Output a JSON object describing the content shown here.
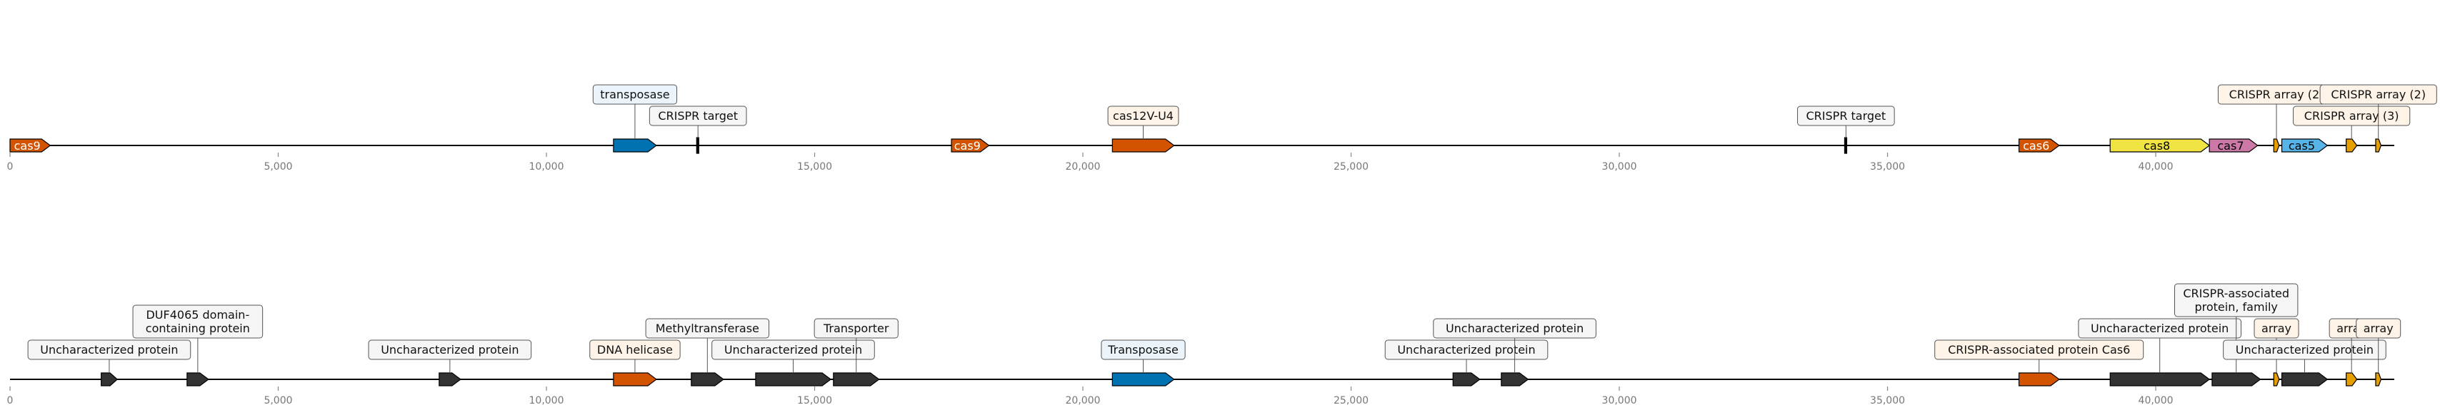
{
  "axis": {
    "min": 0,
    "max": 44500,
    "ticks": [
      0,
      5000,
      10000,
      15000,
      20000,
      25000,
      30000,
      35000,
      40000
    ],
    "tick_labels": [
      "0",
      "5,000",
      "10,000",
      "15,000",
      "20,000",
      "25,000",
      "30,000",
      "35,000",
      "40,000"
    ]
  },
  "colors": {
    "cas9": "#d35400",
    "transposase": "#0072b2",
    "cas8": "#f0e442",
    "cas7": "#cc79a7",
    "cas5": "#56b4e9",
    "array": "#e69f00",
    "uncharacterized": "#333333",
    "line": "#000000",
    "callout_fill_blue": "#eaf4fa",
    "callout_fill_orange": "#fdf3e6",
    "callout_fill_grey": "#f5f5f5"
  },
  "tracks": [
    {
      "genes": [
        {
          "start": 0,
          "end": 750,
          "strand": 1,
          "color": "cas9",
          "inner_label": "cas9",
          "label_color": "#ffffff"
        },
        {
          "start": 11250,
          "end": 12050,
          "strand": 1,
          "color": "transposase",
          "callout": "transposase",
          "callout_fill": "callout_fill_blue",
          "level": 2
        },
        {
          "start": 12800,
          "end": 12850,
          "strand": 1,
          "color": "uncharacterized",
          "callout": "CRISPR target",
          "callout_fill": "callout_fill_grey",
          "level": 1,
          "marker": true
        },
        {
          "start": 17550,
          "end": 18250,
          "strand": 1,
          "color": "cas9",
          "inner_label": "cas9",
          "label_color": "#ffffff"
        },
        {
          "start": 20550,
          "end": 21700,
          "strand": 1,
          "color": "cas9",
          "callout": "cas12V-U4",
          "callout_fill": "callout_fill_orange",
          "level": 1
        },
        {
          "start": 34200,
          "end": 34250,
          "strand": 1,
          "color": "uncharacterized",
          "callout": "CRISPR target",
          "callout_fill": "callout_fill_grey",
          "level": 1,
          "marker": true
        },
        {
          "start": 37450,
          "end": 38200,
          "strand": 1,
          "color": "cas9",
          "inner_label": "cas6",
          "label_color": "#ffffff"
        },
        {
          "start": 39150,
          "end": 41000,
          "strand": 1,
          "color": "cas8",
          "inner_label": "cas8",
          "label_color": "#000000"
        },
        {
          "start": 41000,
          "end": 41900,
          "strand": 1,
          "color": "cas7",
          "inner_label": "cas7",
          "label_color": "#000000"
        },
        {
          "start": 42200,
          "end": 42300,
          "strand": 1,
          "color": "array",
          "callout": "CRISPR array (2)",
          "callout_fill": "callout_fill_orange",
          "level": 2
        },
        {
          "start": 42350,
          "end": 43200,
          "strand": 1,
          "color": "cas5",
          "inner_label": "cas5",
          "label_color": "#000000"
        },
        {
          "start": 43550,
          "end": 43750,
          "strand": 1,
          "color": "array",
          "callout": "CRISPR array (3)",
          "callout_fill": "callout_fill_orange",
          "level": 1
        },
        {
          "start": 44100,
          "end": 44200,
          "strand": 1,
          "color": "array",
          "callout": "CRISPR array (2)",
          "callout_fill": "callout_fill_orange",
          "level": 2
        }
      ]
    },
    {
      "genes": [
        {
          "start": 1700,
          "end": 2000,
          "strand": 1,
          "color": "uncharacterized",
          "callout": "Uncharacterized protein",
          "callout_fill": "callout_fill_grey",
          "level": 1
        },
        {
          "start": 3300,
          "end": 3700,
          "strand": 1,
          "color": "uncharacterized",
          "callout": "DUF4065 domain-\ncontaining protein",
          "callout_fill": "callout_fill_grey",
          "level": 2
        },
        {
          "start": 8000,
          "end": 8400,
          "strand": 1,
          "color": "uncharacterized",
          "callout": "Uncharacterized protein",
          "callout_fill": "callout_fill_grey",
          "level": 1
        },
        {
          "start": 11250,
          "end": 12050,
          "strand": 1,
          "color": "cas9",
          "callout": "DNA helicase",
          "callout_fill": "callout_fill_orange",
          "level": 1
        },
        {
          "start": 12700,
          "end": 13300,
          "strand": 1,
          "color": "uncharacterized",
          "callout": "Methyltransferase",
          "callout_fill": "callout_fill_grey",
          "level": 2
        },
        {
          "start": 13900,
          "end": 15300,
          "strand": 1,
          "color": "uncharacterized",
          "callout": "Uncharacterized protein",
          "callout_fill": "callout_fill_grey",
          "level": 1
        },
        {
          "start": 15350,
          "end": 16200,
          "strand": 1,
          "color": "uncharacterized",
          "callout": "Transporter",
          "callout_fill": "callout_fill_grey",
          "level": 2
        },
        {
          "start": 20550,
          "end": 21700,
          "strand": 1,
          "color": "transposase",
          "callout": "Transposase",
          "callout_fill": "callout_fill_blue",
          "level": 1
        },
        {
          "start": 26900,
          "end": 27400,
          "strand": 1,
          "color": "uncharacterized",
          "callout": "Uncharacterized protein",
          "callout_fill": "callout_fill_grey",
          "level": 1
        },
        {
          "start": 27800,
          "end": 28300,
          "strand": 1,
          "color": "uncharacterized",
          "callout": "Uncharacterized protein",
          "callout_fill": "callout_fill_grey",
          "level": 2
        },
        {
          "start": 37450,
          "end": 38200,
          "strand": 1,
          "color": "cas9",
          "callout": "CRISPR-associated protein Cas6",
          "callout_fill": "callout_fill_orange",
          "level": 1
        },
        {
          "start": 39150,
          "end": 41000,
          "strand": 1,
          "color": "uncharacterized",
          "callout": "Uncharacterized protein",
          "callout_fill": "callout_fill_grey",
          "level": 2
        },
        {
          "start": 41050,
          "end": 41950,
          "strand": 1,
          "color": "uncharacterized",
          "callout": "CRISPR-associated\nprotein, family",
          "callout_fill": "callout_fill_grey",
          "level": 3
        },
        {
          "start": 42200,
          "end": 42300,
          "strand": 1,
          "color": "array",
          "callout": "array",
          "callout_fill": "callout_fill_orange",
          "level": 2
        },
        {
          "start": 42350,
          "end": 43200,
          "strand": 1,
          "color": "uncharacterized",
          "callout": "Uncharacterized protein",
          "callout_fill": "callout_fill_grey",
          "level": 1
        },
        {
          "start": 43550,
          "end": 43750,
          "strand": 1,
          "color": "array",
          "callout": "array",
          "callout_fill": "callout_fill_orange",
          "level": 2
        },
        {
          "start": 44100,
          "end": 44200,
          "strand": 1,
          "color": "array",
          "callout": "array",
          "callout_fill": "callout_fill_orange",
          "level": 2
        }
      ]
    }
  ]
}
